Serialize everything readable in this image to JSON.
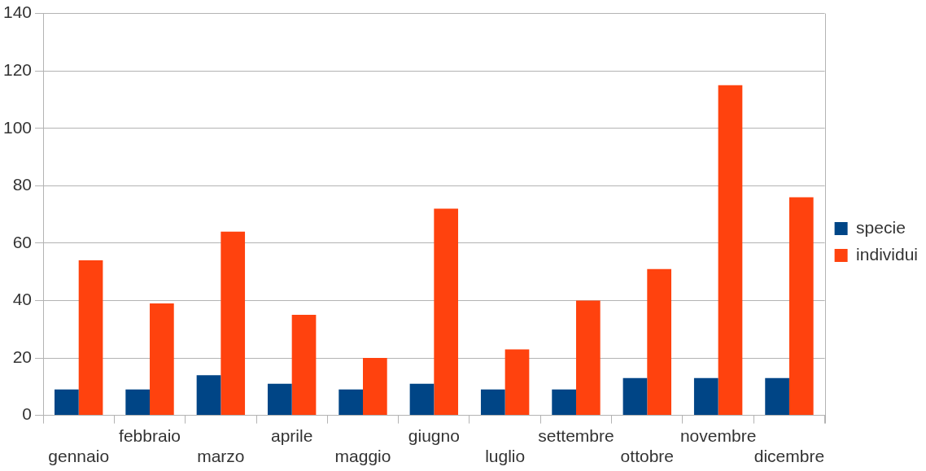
{
  "chart_data": {
    "type": "bar",
    "categories": [
      "gennaio",
      "febbraio",
      "marzo",
      "aprile",
      "maggio",
      "giugno",
      "luglio",
      "settembre",
      "ottobre",
      "novembre",
      "dicembre"
    ],
    "series": [
      {
        "name": "specie",
        "color": "#004586",
        "values": [
          9,
          9,
          14,
          11,
          9,
          11,
          9,
          9,
          13,
          13,
          13
        ]
      },
      {
        "name": "individui",
        "color": "#ff420e",
        "values": [
          54,
          39,
          64,
          35,
          20,
          72,
          23,
          40,
          51,
          115,
          76
        ]
      }
    ],
    "ylim": [
      0,
      140
    ],
    "yticks": [
      0,
      20,
      40,
      60,
      80,
      100,
      120,
      140
    ],
    "grid": "y",
    "legend": "right"
  }
}
